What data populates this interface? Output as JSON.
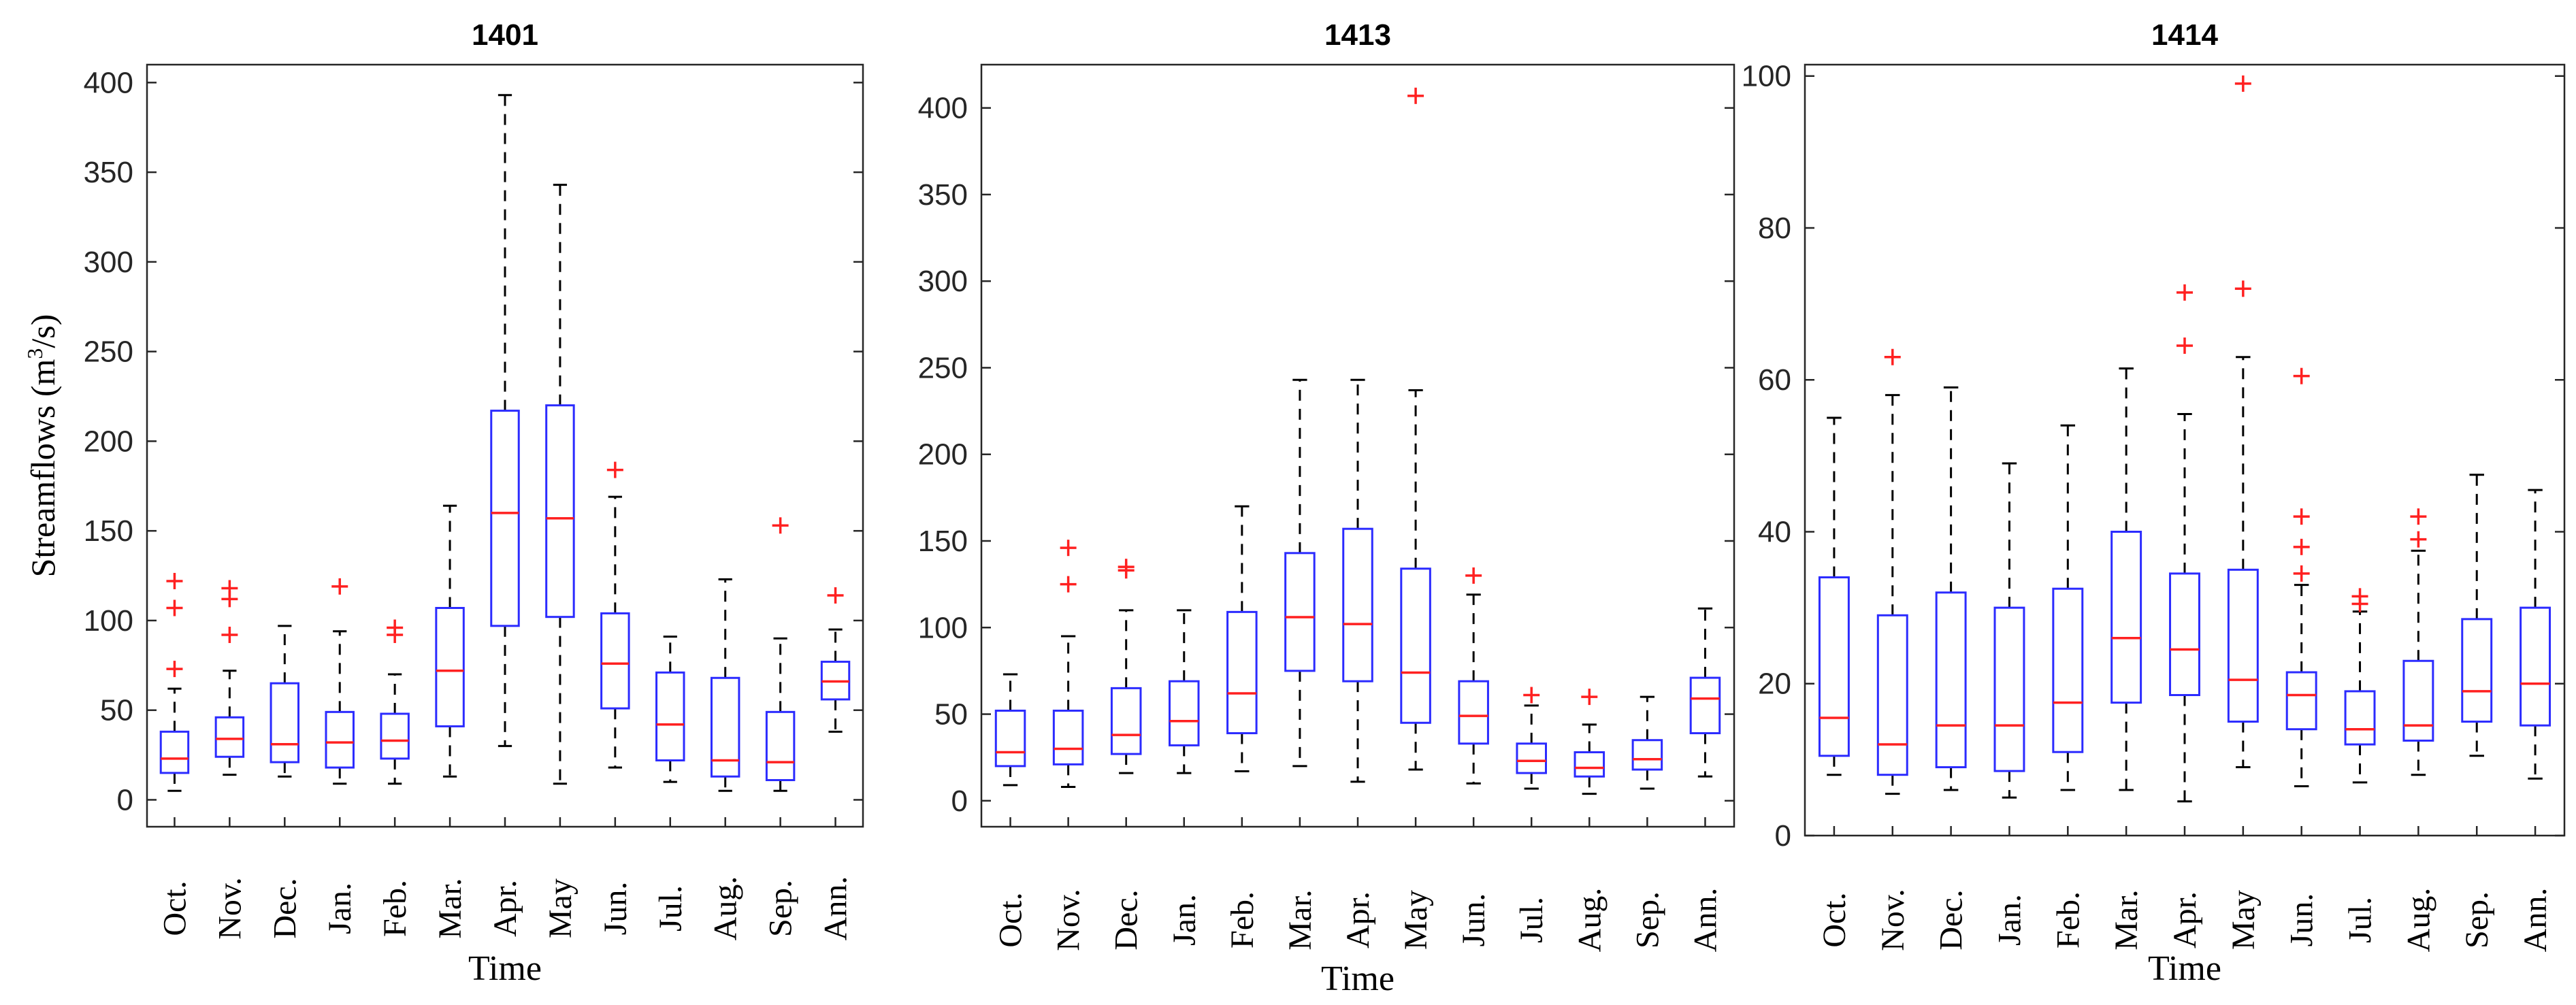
{
  "chart_data": [
    {
      "type": "boxplot",
      "title": "1401",
      "xlabel": "Time",
      "ylabel": "Streamflows (m³/s)",
      "ylabel_base": "Streamflows (m",
      "ylabel_sup": "3",
      "ylabel_end": "/s)",
      "ylim": [
        -15,
        410
      ],
      "yticks": [
        0,
        50,
        100,
        150,
        200,
        250,
        300,
        350,
        400
      ],
      "categories": [
        "Oct.",
        "Nov.",
        "Dec.",
        "Jan.",
        "Feb.",
        "Mar.",
        "Apr.",
        "May",
        "Jun.",
        "Jul.",
        "Aug.",
        "Sep.",
        "Ann."
      ],
      "boxes": [
        {
          "min": 5,
          "q1": 15,
          "median": 23,
          "q3": 38,
          "max": 62,
          "outliers": [
            73,
            107,
            122
          ]
        },
        {
          "min": 14,
          "q1": 24,
          "median": 34,
          "q3": 46,
          "max": 72,
          "outliers": [
            92,
            112,
            118
          ]
        },
        {
          "min": 13,
          "q1": 21,
          "median": 31,
          "q3": 65,
          "max": 97,
          "outliers": []
        },
        {
          "min": 9,
          "q1": 18,
          "median": 32,
          "q3": 49,
          "max": 94,
          "outliers": [
            119
          ]
        },
        {
          "min": 9,
          "q1": 23,
          "median": 33,
          "q3": 48,
          "max": 70,
          "outliers": [
            92,
            96
          ]
        },
        {
          "min": 13,
          "q1": 41,
          "median": 72,
          "q3": 107,
          "max": 164,
          "outliers": []
        },
        {
          "min": 30,
          "q1": 97,
          "median": 160,
          "q3": 217,
          "max": 393,
          "outliers": []
        },
        {
          "min": 9,
          "q1": 102,
          "median": 157,
          "q3": 220,
          "max": 343,
          "outliers": []
        },
        {
          "min": 18,
          "q1": 51,
          "median": 76,
          "q3": 104,
          "max": 169,
          "outliers": [
            184
          ]
        },
        {
          "min": 10,
          "q1": 22,
          "median": 42,
          "q3": 71,
          "max": 91,
          "outliers": []
        },
        {
          "min": 5,
          "q1": 13,
          "median": 22,
          "q3": 68,
          "max": 123,
          "outliers": []
        },
        {
          "min": 5,
          "q1": 11,
          "median": 21,
          "q3": 49,
          "max": 90,
          "outliers": [
            153
          ]
        },
        {
          "min": 38,
          "q1": 56,
          "median": 66,
          "q3": 77,
          "max": 95,
          "outliers": [
            114
          ]
        }
      ]
    },
    {
      "type": "boxplot",
      "title": "1413",
      "xlabel": "Time",
      "ylabel": "",
      "ylim": [
        -15,
        425
      ],
      "yticks": [
        0,
        50,
        100,
        150,
        200,
        250,
        300,
        350,
        400
      ],
      "categories": [
        "Oct.",
        "Nov.",
        "Dec.",
        "Jan.",
        "Feb.",
        "Mar.",
        "Apr.",
        "May",
        "Jun.",
        "Jul.",
        "Aug.",
        "Sep.",
        "Ann."
      ],
      "boxes": [
        {
          "min": 9,
          "q1": 20,
          "median": 28,
          "q3": 52,
          "max": 73,
          "outliers": []
        },
        {
          "min": 8,
          "q1": 21,
          "median": 30,
          "q3": 52,
          "max": 95,
          "outliers": [
            125,
            146
          ]
        },
        {
          "min": 16,
          "q1": 27,
          "median": 38,
          "q3": 65,
          "max": 110,
          "outliers": [
            133,
            135
          ]
        },
        {
          "min": 16,
          "q1": 32,
          "median": 46,
          "q3": 69,
          "max": 110,
          "outliers": []
        },
        {
          "min": 17,
          "q1": 39,
          "median": 62,
          "q3": 109,
          "max": 170,
          "outliers": []
        },
        {
          "min": 20,
          "q1": 75,
          "median": 106,
          "q3": 143,
          "max": 243,
          "outliers": []
        },
        {
          "min": 11,
          "q1": 69,
          "median": 102,
          "q3": 157,
          "max": 243,
          "outliers": []
        },
        {
          "min": 18,
          "q1": 45,
          "median": 74,
          "q3": 134,
          "max": 237,
          "outliers": [
            407
          ]
        },
        {
          "min": 10,
          "q1": 33,
          "median": 49,
          "q3": 69,
          "max": 119,
          "outliers": [
            130
          ]
        },
        {
          "min": 7,
          "q1": 16,
          "median": 23,
          "q3": 33,
          "max": 55,
          "outliers": [
            61
          ]
        },
        {
          "min": 4,
          "q1": 14,
          "median": 19,
          "q3": 28,
          "max": 44,
          "outliers": [
            60
          ]
        },
        {
          "min": 7,
          "q1": 18,
          "median": 24,
          "q3": 35,
          "max": 60,
          "outliers": []
        },
        {
          "min": 14,
          "q1": 39,
          "median": 59,
          "q3": 71,
          "max": 111,
          "outliers": []
        }
      ]
    },
    {
      "type": "boxplot",
      "title": "1414",
      "xlabel": "Time",
      "ylabel": "",
      "ylim": [
        0,
        101.5
      ],
      "yticks": [
        0,
        20,
        40,
        60,
        80,
        100
      ],
      "categories": [
        "Oct.",
        "Nov.",
        "Dec.",
        "Jan.",
        "Feb.",
        "Mar.",
        "Apr.",
        "May",
        "Jun.",
        "Jul.",
        "Aug.",
        "Sep.",
        "Ann."
      ],
      "boxes": [
        {
          "min": 8,
          "q1": 10.5,
          "median": 15.5,
          "q3": 34,
          "max": 55,
          "outliers": []
        },
        {
          "min": 5.5,
          "q1": 8,
          "median": 12,
          "q3": 29,
          "max": 58,
          "outliers": [
            63
          ]
        },
        {
          "min": 6,
          "q1": 9,
          "median": 14.5,
          "q3": 32,
          "max": 59,
          "outliers": []
        },
        {
          "min": 5,
          "q1": 8.5,
          "median": 14.5,
          "q3": 30,
          "max": 49,
          "outliers": []
        },
        {
          "min": 6,
          "q1": 11,
          "median": 17.5,
          "q3": 32.5,
          "max": 54,
          "outliers": []
        },
        {
          "min": 6,
          "q1": 17.5,
          "median": 26,
          "q3": 40,
          "max": 61.5,
          "outliers": []
        },
        {
          "min": 4.5,
          "q1": 18.5,
          "median": 24.5,
          "q3": 34.5,
          "max": 55.5,
          "outliers": [
            64.5,
            71.5
          ]
        },
        {
          "min": 9,
          "q1": 15,
          "median": 20.5,
          "q3": 35,
          "max": 63,
          "outliers": [
            72,
            99
          ]
        },
        {
          "min": 6.5,
          "q1": 14,
          "median": 18.5,
          "q3": 21.5,
          "max": 33,
          "outliers": [
            34.5,
            38,
            42,
            60.5
          ]
        },
        {
          "min": 7,
          "q1": 12,
          "median": 14,
          "q3": 19,
          "max": 29.5,
          "outliers": [
            30.5,
            31.5
          ]
        },
        {
          "min": 8,
          "q1": 12.5,
          "median": 14.5,
          "q3": 23,
          "max": 37.5,
          "outliers": [
            39,
            42
          ]
        },
        {
          "min": 10.5,
          "q1": 15,
          "median": 19,
          "q3": 28.5,
          "max": 47.5,
          "outliers": []
        },
        {
          "min": 7.5,
          "q1": 14.5,
          "median": 20,
          "q3": 30,
          "max": 45.5,
          "outliers": []
        }
      ]
    }
  ]
}
